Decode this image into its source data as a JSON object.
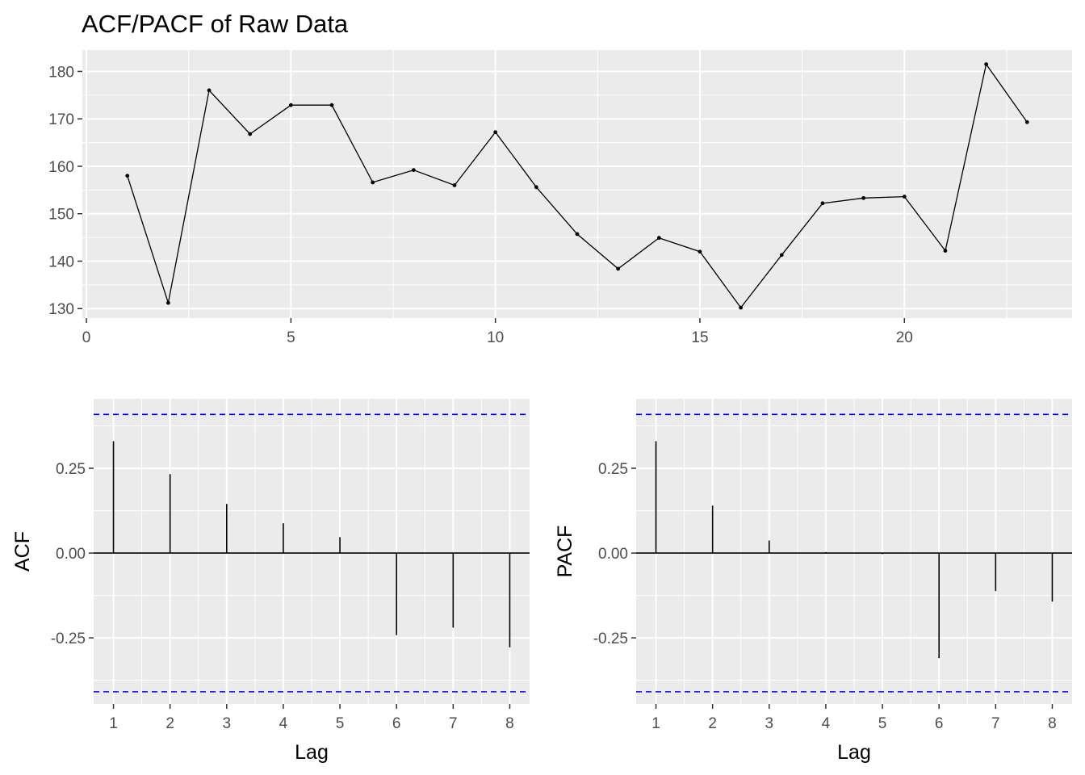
{
  "colors": {
    "panel_background": "#ebebeb",
    "grid": "#ffffff",
    "series": "#000000",
    "confidence_band": "#0000ff",
    "tick_label": "#4d4d4d"
  },
  "chart_data": [
    {
      "id": "raw",
      "type": "line",
      "title": "ACF/PACF of Raw Data",
      "xlabel": "",
      "ylabel": "",
      "x": [
        1,
        2,
        3,
        4,
        5,
        6,
        7,
        8,
        9,
        10,
        11,
        12,
        13,
        14,
        15,
        16,
        17,
        18,
        19,
        20,
        21,
        22,
        23
      ],
      "values": [
        158,
        131.2,
        176,
        166.8,
        172.9,
        172.9,
        156.6,
        159.2,
        156,
        167.2,
        155.6,
        145.7,
        138.4,
        144.9,
        142,
        130.2,
        141.3,
        152.2,
        153.3,
        153.6,
        142.2,
        181.5,
        169.3
      ],
      "xlim": [
        -0.1,
        24.1
      ],
      "ylim": [
        128,
        184.5
      ],
      "xticks": [
        0,
        5,
        10,
        15,
        20
      ],
      "yticks": [
        130,
        140,
        150,
        160,
        170,
        180
      ],
      "markers": true,
      "grid": true
    },
    {
      "id": "acf",
      "type": "bar",
      "title": "",
      "xlabel": "Lag",
      "ylabel": "ACF",
      "x": [
        1,
        2,
        3,
        4,
        5,
        6,
        7,
        8
      ],
      "values": [
        0.33,
        0.233,
        0.145,
        0.088,
        0.047,
        -0.242,
        -0.22,
        -0.278
      ],
      "confidence_bound": 0.409,
      "xlim": [
        0.65,
        8.35
      ],
      "ylim": [
        -0.445,
        0.455
      ],
      "xticks": [
        1,
        2,
        3,
        4,
        5,
        6,
        7,
        8
      ],
      "yticks": [
        -0.25,
        0,
        0.25
      ],
      "ytick_labels": [
        "-0.25",
        "0.00",
        "0.25"
      ],
      "grid": true
    },
    {
      "id": "pacf",
      "type": "bar",
      "title": "",
      "xlabel": "Lag",
      "ylabel": "PACF",
      "x": [
        1,
        2,
        3,
        4,
        5,
        6,
        7,
        8
      ],
      "values": [
        0.33,
        0.14,
        0.037,
        0.003,
        -0.003,
        -0.31,
        -0.112,
        -0.143
      ],
      "confidence_bound": 0.409,
      "xlim": [
        0.65,
        8.35
      ],
      "ylim": [
        -0.445,
        0.455
      ],
      "xticks": [
        1,
        2,
        3,
        4,
        5,
        6,
        7,
        8
      ],
      "yticks": [
        -0.25,
        0,
        0.25
      ],
      "ytick_labels": [
        "-0.25",
        "0.00",
        "0.25"
      ],
      "grid": true
    }
  ]
}
